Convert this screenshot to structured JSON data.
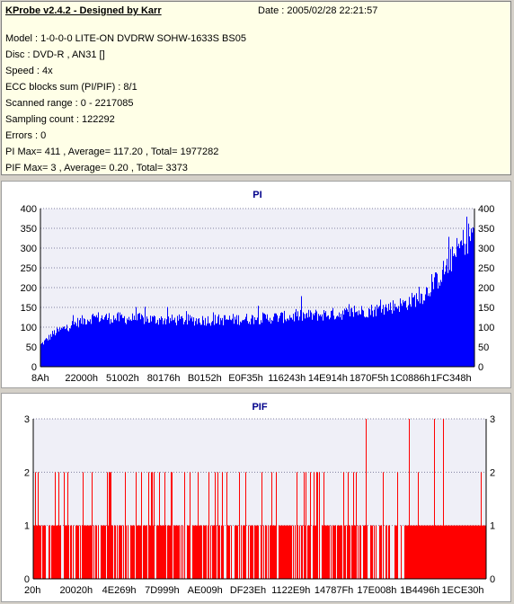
{
  "header": {
    "title": "KProbe v2.4.2 - Designed by Karr",
    "date": "Date : 2005/02/28 22:21:57"
  },
  "info_lines": [
    "Model : 1-0-0-0 LITE-ON DVDRW SOHW-1633S BS05",
    "Disc : DVD-R , AN31 []",
    "Speed : 4x",
    "ECC blocks sum (PI/PIF) : 8/1",
    "Scanned range : 0 - 2217085",
    "Sampling count : 122292",
    "Errors : 0",
    "PI Max= 411 , Average= 117.20 , Total= 1977282",
    "PIF Max= 3 , Average= 0.20 , Total= 3373"
  ],
  "chart_data": [
    {
      "type": "area",
      "title": "PI",
      "color": "#0000ff",
      "ylim": [
        0,
        400
      ],
      "yticks": [
        0,
        50,
        100,
        150,
        200,
        250,
        300,
        350,
        400
      ],
      "x_tick_labels": [
        "8Ah",
        "22000h",
        "51002h",
        "80176h",
        "B0152h",
        "E0F35h",
        "116243h",
        "14E914h",
        "1870F5h",
        "1C0886h",
        "1FC348h"
      ],
      "max": 411,
      "profile": [
        [
          0,
          55
        ],
        [
          0.03,
          85
        ],
        [
          0.08,
          110
        ],
        [
          0.12,
          125
        ],
        [
          0.2,
          122
        ],
        [
          0.3,
          118
        ],
        [
          0.4,
          118
        ],
        [
          0.5,
          122
        ],
        [
          0.6,
          128
        ],
        [
          0.7,
          135
        ],
        [
          0.78,
          145
        ],
        [
          0.84,
          160
        ],
        [
          0.88,
          180
        ],
        [
          0.91,
          215
        ],
        [
          0.94,
          260
        ],
        [
          0.97,
          310
        ],
        [
          1.0,
          345
        ]
      ]
    },
    {
      "type": "bar",
      "title": "PIF",
      "color": "#ff0000",
      "ylim": [
        0,
        3
      ],
      "yticks": [
        0,
        1,
        2,
        3
      ],
      "x_tick_labels": [
        "20h",
        "20020h",
        "4E269h",
        "7D999h",
        "AE009h",
        "DF23Eh",
        "1122E9h",
        "14787Fh",
        "17E008h",
        "1B4496h",
        "1ECE30h"
      ],
      "max": 3
    }
  ]
}
